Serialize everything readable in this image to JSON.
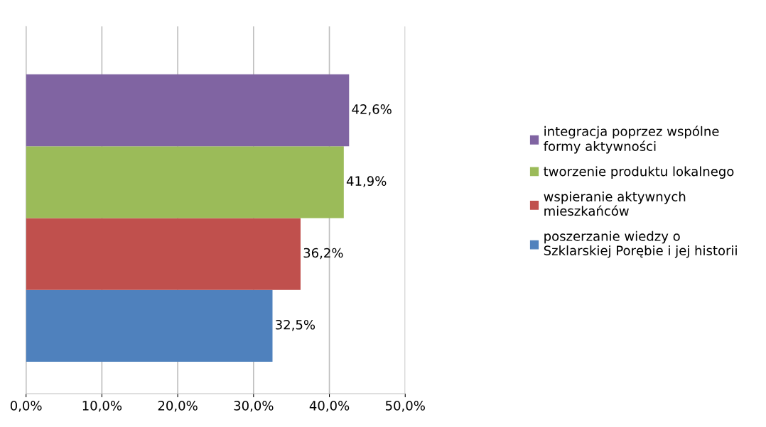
{
  "chart_data": {
    "type": "bar",
    "orientation": "horizontal",
    "categories": [
      null
    ],
    "series": [
      {
        "name": "poszerzanie wiedzy o\nSzklarskiej Porębie i jej historii",
        "color": "#4f81bd",
        "values": [
          32.5
        ],
        "value_labels": [
          "32,5%"
        ]
      },
      {
        "name": "wspieranie aktywnych\nmieszkańców",
        "color": "#c0504d",
        "values": [
          36.2
        ],
        "value_labels": [
          "36,2%"
        ]
      },
      {
        "name": "tworzenie produktu lokalnego",
        "color": "#9bbb59",
        "values": [
          41.9
        ],
        "value_labels": [
          "41,9%"
        ]
      },
      {
        "name": "integracja poprzez wspólne\nformy aktywności",
        "color": "#8064a2",
        "values": [
          42.6
        ],
        "value_labels": [
          "42,6%"
        ]
      }
    ],
    "xlim": [
      0,
      50
    ],
    "xticks": [
      {
        "value": 0,
        "label": "0,0%"
      },
      {
        "value": 10,
        "label": "10,0%"
      },
      {
        "value": 20,
        "label": "20,0%"
      },
      {
        "value": 30,
        "label": "30,0%"
      },
      {
        "value": 40,
        "label": "40,0%"
      },
      {
        "value": 50,
        "label": "50,0%"
      }
    ],
    "grid": "x",
    "legend": "right"
  }
}
